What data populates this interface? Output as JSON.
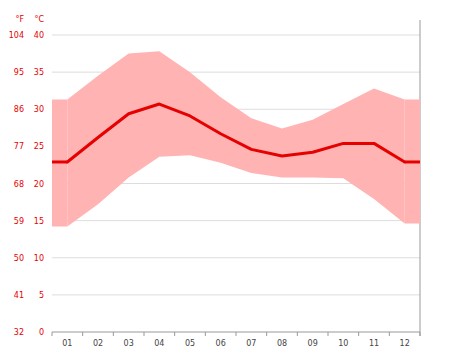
{
  "chart_data": {
    "type": "line",
    "y_label": "°C",
    "y2_label": "°F",
    "categories": [
      "01",
      "02",
      "03",
      "04",
      "05",
      "06",
      "07",
      "08",
      "09",
      "10",
      "11",
      "12"
    ],
    "series": [
      {
        "type": "range",
        "color": "#ffb3b3",
        "values": [
          31.3,
          34.5,
          37.5,
          37.8,
          35.0,
          31.6,
          28.8,
          27.4,
          28.6,
          30.7,
          32.8,
          31.3
        ],
        "lower": [
          14.2,
          17.2,
          20.8,
          23.6,
          23.8,
          22.8,
          21.4,
          20.8,
          20.8,
          20.7,
          17.9,
          14.6
        ]
      },
      {
        "type": "line",
        "color": "#e60000",
        "values": [
          22.9,
          26.2,
          29.4,
          30.7,
          29.1,
          26.7,
          24.6,
          23.7,
          24.2,
          25.4,
          25.4,
          22.9
        ]
      }
    ],
    "ylim": [
      0,
      40
    ],
    "yticks": [
      0,
      5,
      10,
      15,
      20,
      25,
      30,
      35,
      40
    ],
    "y2lim": [
      32,
      104
    ],
    "y2ticks": [
      32,
      41,
      50,
      59,
      68,
      77,
      86,
      95,
      104
    ],
    "grid": true
  }
}
